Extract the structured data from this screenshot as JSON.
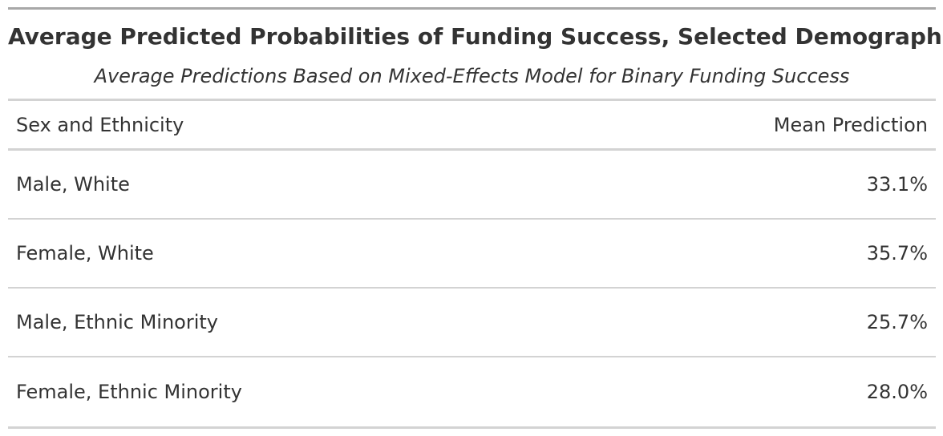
{
  "chart_data": {
    "type": "table",
    "title": "Average Predicted Probabilities of Funding Success, Selected Demographics",
    "subtitle": "Average Predictions Based on Mixed-Effects Model for Binary Funding Success",
    "columns": [
      "Sex and Ethnicity",
      "Mean Prediction"
    ],
    "rows": [
      {
        "group": "Male, White",
        "value": "33.1%"
      },
      {
        "group": "Female, White",
        "value": "35.7%"
      },
      {
        "group": "Male, Ethnic Minority",
        "value": "25.7%"
      },
      {
        "group": "Female, Ethnic Minority",
        "value": "28.0%"
      }
    ]
  }
}
